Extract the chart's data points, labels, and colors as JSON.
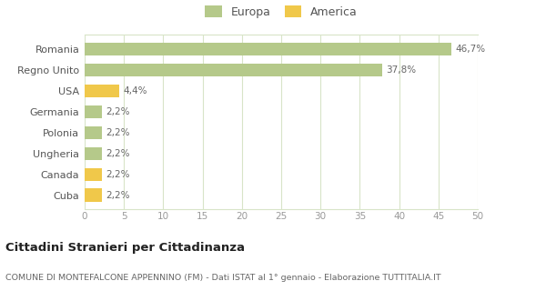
{
  "categories": [
    "Cuba",
    "Canada",
    "Ungheria",
    "Polonia",
    "Germania",
    "USA",
    "Regno Unito",
    "Romania"
  ],
  "values": [
    2.2,
    2.2,
    2.2,
    2.2,
    2.2,
    4.4,
    37.8,
    46.7
  ],
  "labels": [
    "2,2%",
    "2,2%",
    "2,2%",
    "2,2%",
    "2,2%",
    "4,4%",
    "37,8%",
    "46,7%"
  ],
  "colors": [
    "#f0c84a",
    "#f0c84a",
    "#b5c98a",
    "#b5c98a",
    "#b5c98a",
    "#f0c84a",
    "#b5c98a",
    "#b5c98a"
  ],
  "legend_labels": [
    "Europa",
    "America"
  ],
  "legend_colors": [
    "#b5c98a",
    "#f0c84a"
  ],
  "xlim": [
    0,
    50
  ],
  "xticks": [
    0,
    5,
    10,
    15,
    20,
    25,
    30,
    35,
    40,
    45,
    50
  ],
  "title_main": "Cittadini Stranieri per Cittadinanza",
  "title_sub": "COMUNE DI MONTEFALCONE APPENNINO (FM) - Dati ISTAT al 1° gennaio - Elaborazione TUTTITALIA.IT",
  "background_color": "#ffffff",
  "grid_color": "#d8e4c8"
}
